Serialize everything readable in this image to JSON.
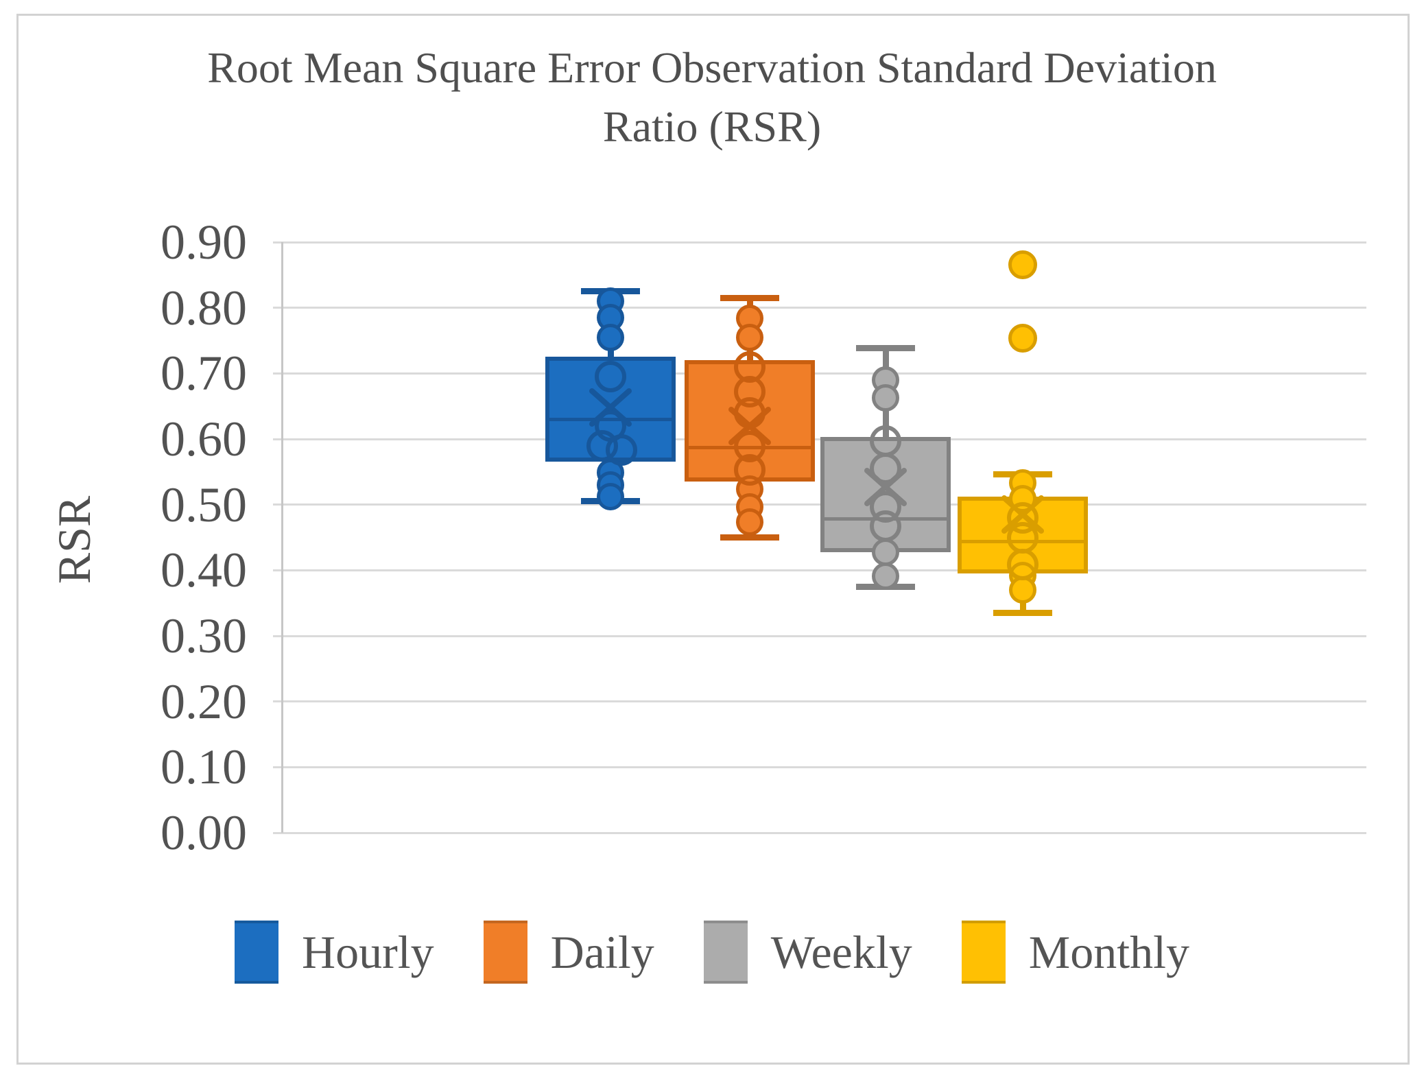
{
  "style": {
    "frame_color": "#d2d2d2",
    "grid_color": "#dadada",
    "axis_line_color": "#c6c6c6",
    "text_color": "#525252",
    "title_color": "#4f4f4f"
  },
  "chart_data": {
    "type": "boxplot",
    "title": "Root Mean Square Error Observation Standard Deviation Ratio (RSR)",
    "xlabel": "",
    "ylabel": "RSR",
    "ylim": [
      0.0,
      0.9
    ],
    "ytick_step": 0.1,
    "ytick_labels": [
      "0.90",
      "0.80",
      "0.70",
      "0.60",
      "0.50",
      "0.40",
      "0.30",
      "0.20",
      "0.10",
      "0.00"
    ],
    "grid": true,
    "legend_position": "bottom",
    "series": [
      {
        "name": "Hourly",
        "fill": "#1C6EC0",
        "stroke": "#17579B",
        "whisker_low": 0.505,
        "q1": 0.565,
        "median": 0.63,
        "q3": 0.725,
        "whisker_high": 0.825,
        "mean": 0.648,
        "outliers": [],
        "points_filled": [
          0.81,
          0.785,
          0.755,
          0.549,
          0.53,
          0.512
        ],
        "points_open": [
          {
            "v": 0.695,
            "dx": 0
          },
          {
            "v": 0.62,
            "dx": 0
          },
          {
            "v": 0.59,
            "dx": -12
          },
          {
            "v": 0.583,
            "dx": 16
          }
        ]
      },
      {
        "name": "Daily",
        "fill": "#F07E28",
        "stroke": "#C95F10",
        "whisker_low": 0.45,
        "q1": 0.535,
        "median": 0.587,
        "q3": 0.72,
        "whisker_high": 0.815,
        "mean": 0.62,
        "outliers": [],
        "points_filled": [
          0.784,
          0.755,
          0.524,
          0.496,
          0.474
        ],
        "points_open": [
          {
            "v": 0.71,
            "dx": 0
          },
          {
            "v": 0.672,
            "dx": 0
          },
          {
            "v": 0.64,
            "dx": 0
          },
          {
            "v": 0.589,
            "dx": 0
          },
          {
            "v": 0.553,
            "dx": 0
          }
        ]
      },
      {
        "name": "Weekly",
        "fill": "#ACACAC",
        "stroke": "#828282",
        "whisker_low": 0.375,
        "q1": 0.428,
        "median": 0.478,
        "q3": 0.603,
        "whisker_high": 0.739,
        "mean": 0.527,
        "outliers": [],
        "points_filled": [
          0.69,
          0.663,
          0.428,
          0.391
        ],
        "points_open": [
          {
            "v": 0.597,
            "dx": 0
          },
          {
            "v": 0.555,
            "dx": 0
          },
          {
            "v": 0.497,
            "dx": 0
          },
          {
            "v": 0.467,
            "dx": 0
          }
        ]
      },
      {
        "name": "Monthly",
        "fill": "#FFC003",
        "stroke": "#D99E00",
        "whisker_low": 0.335,
        "q1": 0.395,
        "median": 0.444,
        "q3": 0.512,
        "whisker_high": 0.546,
        "mean": 0.485,
        "outliers": [
          0.865,
          0.754
        ],
        "points_filled": [
          0.533,
          0.509,
          0.392,
          0.37
        ],
        "points_open": [
          {
            "v": 0.48,
            "dx": 0
          },
          {
            "v": 0.449,
            "dx": 0
          },
          {
            "v": 0.409,
            "dx": 0
          }
        ]
      }
    ]
  }
}
